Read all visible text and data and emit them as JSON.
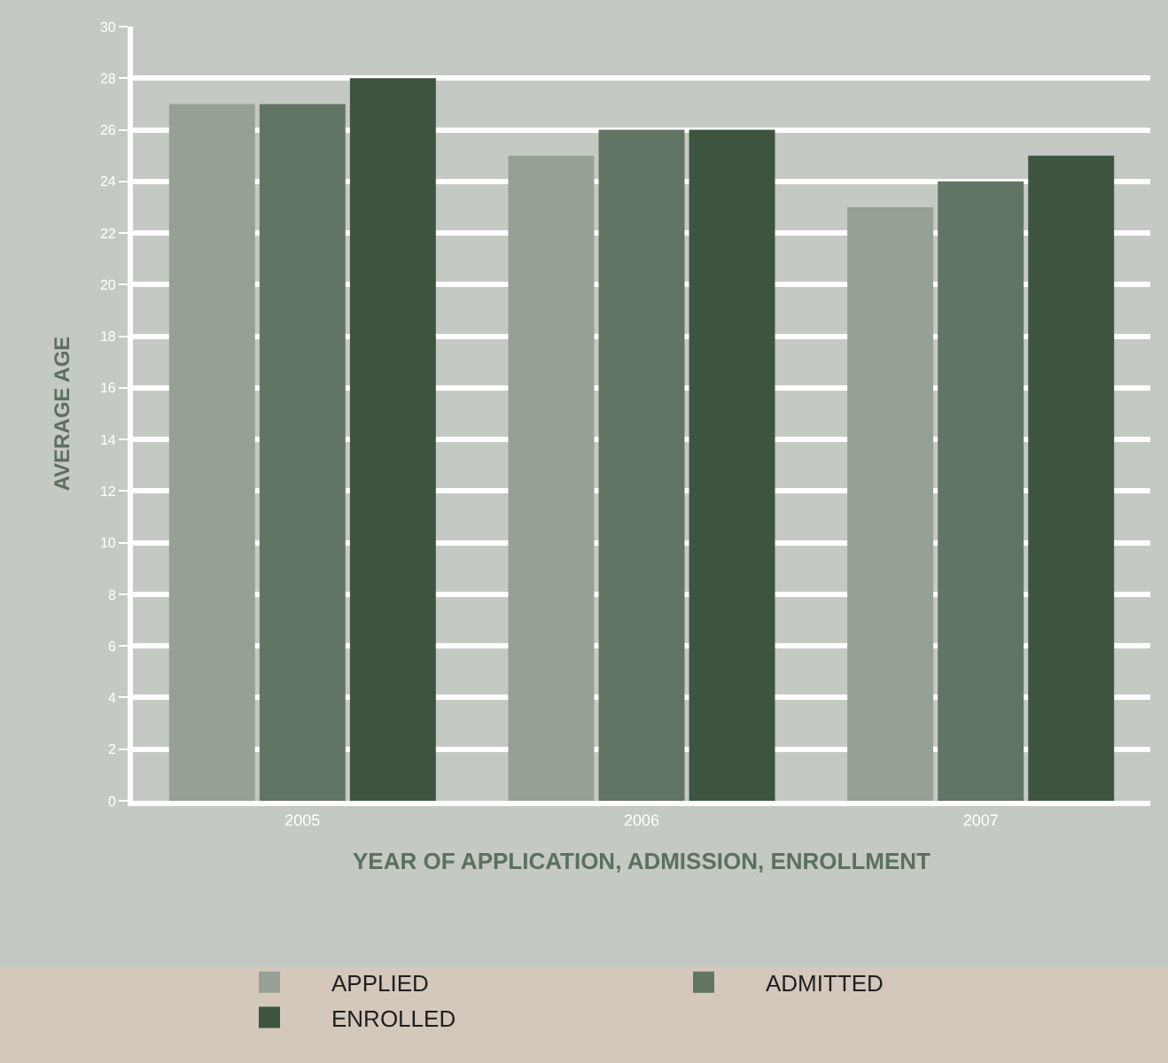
{
  "chart_data": {
    "type": "bar",
    "xlabel": "YEAR OF APPLICATION, ADMISSION, ENROLLMENT",
    "ylabel": "AVERAGE AGE",
    "categories": [
      "2005",
      "2006",
      "2007"
    ],
    "series": [
      {
        "name": "APPLIED",
        "color": "#96a094",
        "values": [
          27,
          25,
          23
        ]
      },
      {
        "name": "ADMITTED",
        "color": "#627565",
        "values": [
          27,
          26,
          24
        ]
      },
      {
        "name": "ENROLLED",
        "color": "#3d5540",
        "values": [
          28,
          26,
          25
        ]
      }
    ],
    "ylim": [
      0,
      30
    ],
    "yticks": [
      0,
      2,
      4,
      6,
      8,
      10,
      12,
      14,
      16,
      18,
      20,
      22,
      24,
      26,
      28,
      30
    ],
    "grid": "y",
    "legend": "bottom"
  }
}
